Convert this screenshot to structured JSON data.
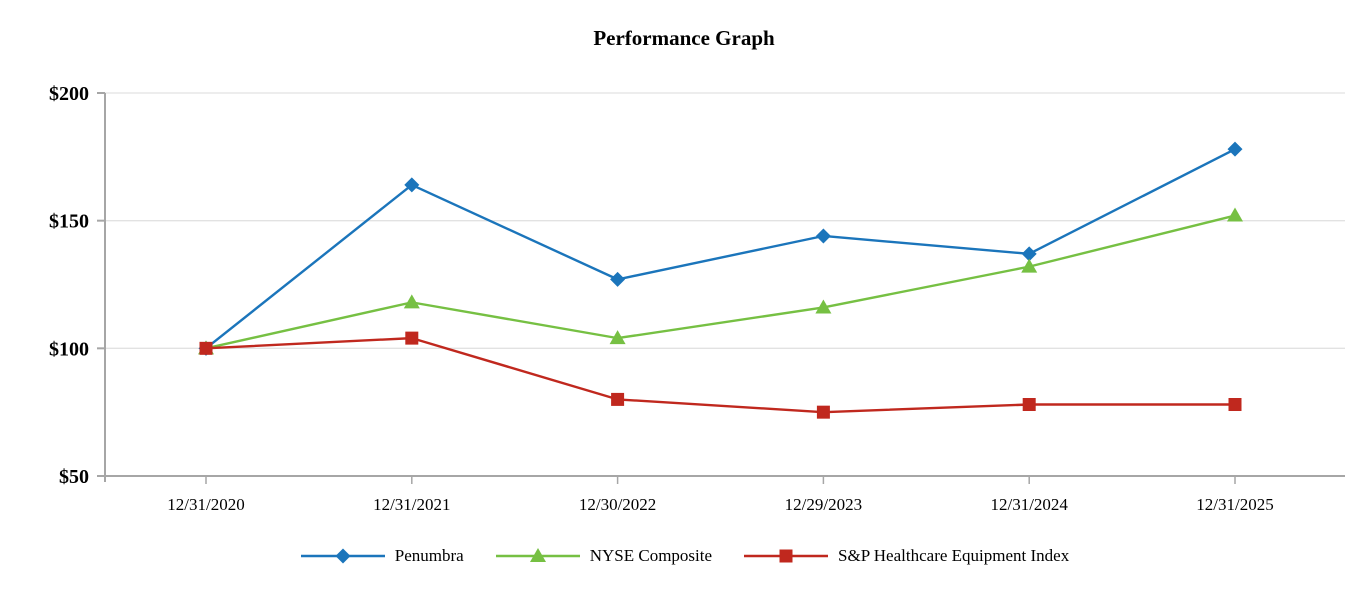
{
  "chart_data": {
    "type": "line",
    "title": "Performance Graph",
    "categories": [
      "12/31/2020",
      "12/31/2021",
      "12/30/2022",
      "12/29/2023",
      "12/31/2024",
      "12/31/2025"
    ],
    "series": [
      {
        "name": "Penumbra",
        "marker": "diamond",
        "color": "#1B75BB",
        "values": [
          100,
          164,
          127,
          144,
          137,
          178
        ]
      },
      {
        "name": "NYSE Composite",
        "marker": "triangle",
        "color": "#76C043",
        "values": [
          100,
          118,
          104,
          116,
          132,
          152
        ]
      },
      {
        "name": "S&P Healthcare Equipment Index",
        "marker": "square",
        "color": "#C0281E",
        "values": [
          100,
          104,
          80,
          75,
          78,
          78
        ]
      }
    ],
    "y_axis": {
      "ticks": [
        {
          "label": "$200",
          "value": 200
        },
        {
          "label": "$150",
          "value": 150
        },
        {
          "label": "$100",
          "value": 100
        },
        {
          "label": "$50",
          "value": 50
        }
      ],
      "gridline_values": [
        100,
        150,
        200
      ],
      "range": [
        50,
        200
      ]
    },
    "xlabel": "",
    "ylabel": "",
    "grid": "horizontal",
    "legend_position": "bottom",
    "colors": {
      "axis": "#A6A6A6",
      "gridline": "#E2E2E2",
      "text": "#000000"
    }
  }
}
